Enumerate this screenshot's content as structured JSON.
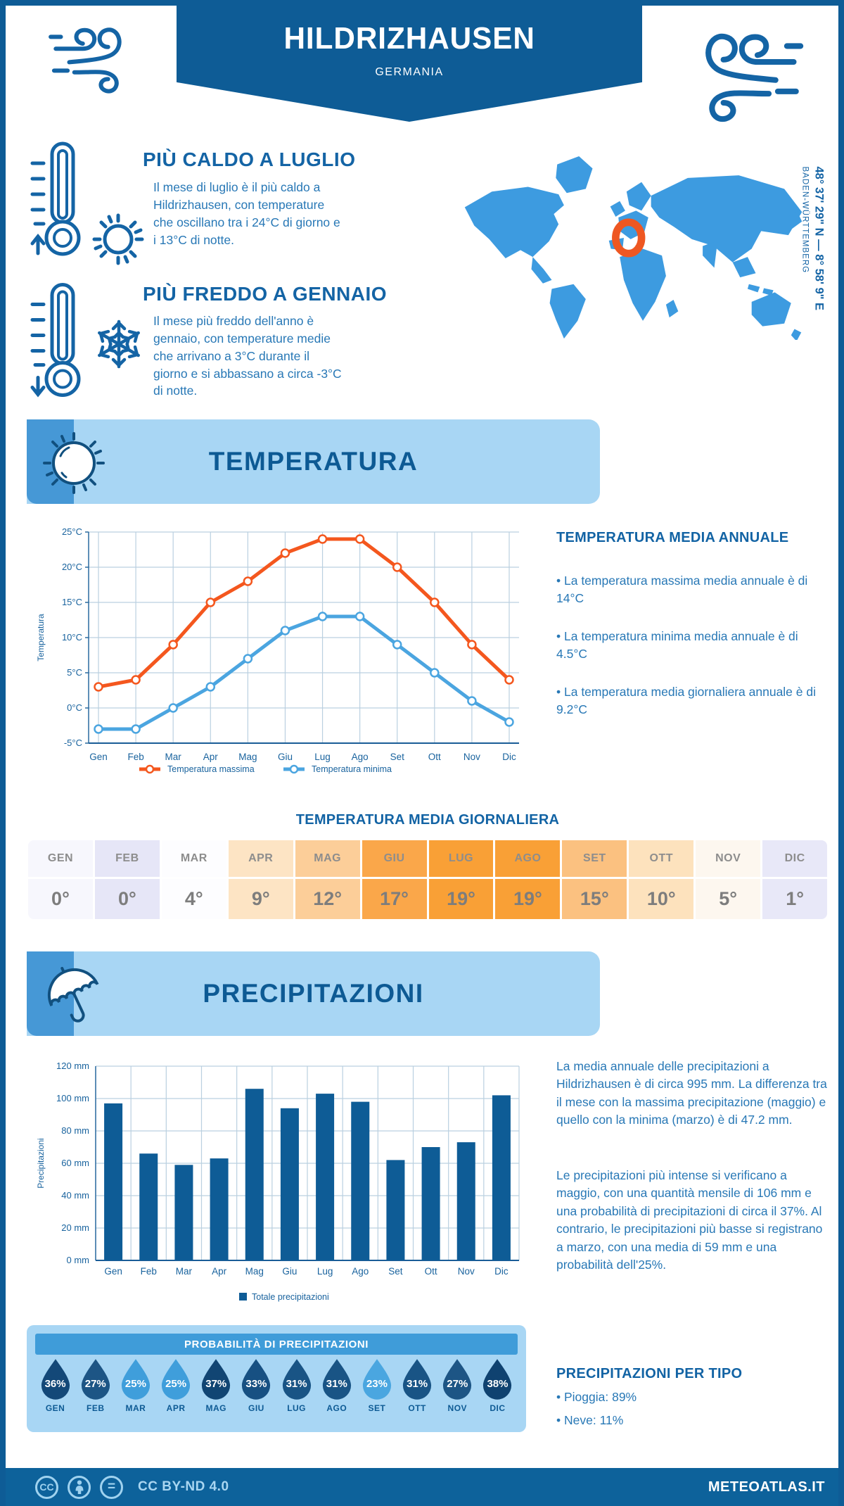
{
  "page": {
    "title": "HILDRIZHAUSEN",
    "subtitle": "GERMANIA",
    "coordinates": "48° 37' 29\" N — 8° 58' 9\" E",
    "region": "BADEN-WÜRTTEMBERG"
  },
  "highlights": {
    "warm": {
      "heading": "PIÙ CALDO A LUGLIO",
      "text": "Il mese di luglio è il più caldo a Hildrizhausen, con temperature che oscillano tra i 24°C di giorno e i 13°C di notte."
    },
    "cold": {
      "heading": "PIÙ FREDDO A GENNAIO",
      "text": "Il mese più freddo dell'anno è gennaio, con temperature medie che arrivano a 3°C durante il giorno e si abbassano a circa -3°C di notte."
    }
  },
  "temperature_section": {
    "banner_title": "TEMPERATURA",
    "annual": {
      "heading": "TEMPERATURA MEDIA ANNUALE",
      "bullets": [
        "La temperatura massima media annuale è di 14°C",
        "La temperatura minima media annuale è di 4.5°C",
        "La temperatura media giornaliera annuale è di 9.2°C"
      ]
    },
    "daily": {
      "heading": "TEMPERATURA MEDIA GIORNALIERA",
      "months": [
        "GEN",
        "FEB",
        "MAR",
        "APR",
        "MAG",
        "GIU",
        "LUG",
        "AGO",
        "SET",
        "OTT",
        "NOV",
        "DIC"
      ],
      "values": [
        "0°",
        "0°",
        "4°",
        "9°",
        "12°",
        "17°",
        "19°",
        "19°",
        "15°",
        "10°",
        "5°",
        "1°"
      ],
      "cell_colors": [
        "#f7f7fd",
        "#e6e6f7",
        "#fdfdff",
        "#fde4c4",
        "#fcce99",
        "#faa74a",
        "#f9a036",
        "#f9a036",
        "#fbc180",
        "#fde2bd",
        "#fdf7ef",
        "#e8e8f8"
      ]
    }
  },
  "precipitation_section": {
    "banner_title": "PRECIPITAZIONI",
    "paragraph1": "La media annuale delle precipitazioni a Hildrizhausen è di circa 995 mm. La differenza tra il mese con la massima precipitazione (maggio) e quello con la minima (marzo) è di 47.2 mm.",
    "paragraph2": "Le precipitazioni più intense si verificano a maggio, con una quantità mensile di 106 mm e una probabilità di precipitazioni di circa il 37%. Al contrario, le precipitazioni più basse si registrano a marzo, con una media di 59 mm e una probabilità dell'25%.",
    "probability": {
      "heading": "PROBABILITÀ DI PRECIPITAZIONI",
      "months": [
        "GEN",
        "FEB",
        "MAR",
        "APR",
        "MAG",
        "GIU",
        "LUG",
        "AGO",
        "SET",
        "OTT",
        "NOV",
        "DIC"
      ],
      "values": [
        "36%",
        "27%",
        "25%",
        "25%",
        "37%",
        "33%",
        "31%",
        "31%",
        "23%",
        "31%",
        "27%",
        "38%"
      ],
      "drop_colors": [
        "#134878",
        "#1d5585",
        "#3f9edb",
        "#3f9edb",
        "#114573",
        "#175082",
        "#195485",
        "#195485",
        "#4aa6e0",
        "#195485",
        "#1d5585",
        "#0f4270"
      ]
    },
    "types": {
      "heading": "PRECIPITAZIONI PER TIPO",
      "bullets": [
        "Pioggia: 89%",
        "Neve: 11%"
      ]
    }
  },
  "chart_data": [
    {
      "type": "line",
      "x": [
        "Gen",
        "Feb",
        "Mar",
        "Apr",
        "Mag",
        "Giu",
        "Lug",
        "Ago",
        "Set",
        "Ott",
        "Nov",
        "Dic"
      ],
      "series": [
        {
          "name": "Temperatura massima",
          "color": "#f4571e",
          "values": [
            3,
            4,
            9,
            15,
            18,
            22,
            24,
            24,
            20,
            15,
            9,
            4
          ]
        },
        {
          "name": "Temperatura minima",
          "color": "#4ba5e0",
          "values": [
            -3,
            -3,
            0,
            3,
            7,
            11,
            13,
            13,
            9,
            5,
            1,
            -2
          ]
        }
      ],
      "ylabel": "Temperatura",
      "ylim": [
        -5,
        25
      ],
      "ystep": 5,
      "ytick_suffix": "°C",
      "grid": true,
      "legend_position": "bottom"
    },
    {
      "type": "bar",
      "categories": [
        "Gen",
        "Feb",
        "Mar",
        "Apr",
        "Mag",
        "Giu",
        "Lug",
        "Ago",
        "Set",
        "Ott",
        "Nov",
        "Dic"
      ],
      "values": [
        97,
        66,
        59,
        63,
        106,
        94,
        103,
        98,
        62,
        70,
        73,
        102
      ],
      "legend": "Totale precipitazioni",
      "ylabel": "Precipitazioni",
      "ylim": [
        0,
        120
      ],
      "ystep": 20,
      "ytick_suffix": " mm",
      "bar_color": "#0e5c96",
      "grid": true
    }
  ],
  "footer": {
    "license": "CC BY-ND 4.0",
    "brand": "METEOATLAS.IT"
  },
  "colors": {
    "primary": "#0e5c96",
    "banner_light": "#a8d6f4",
    "icon_square": "#4698d6",
    "map": "#3d9be0",
    "marker": "#ee5722",
    "grid": "#bad0e0",
    "axis_text": "#19639e",
    "prob_header": "#3f9cd9",
    "footer_bg": "#0d629b"
  }
}
